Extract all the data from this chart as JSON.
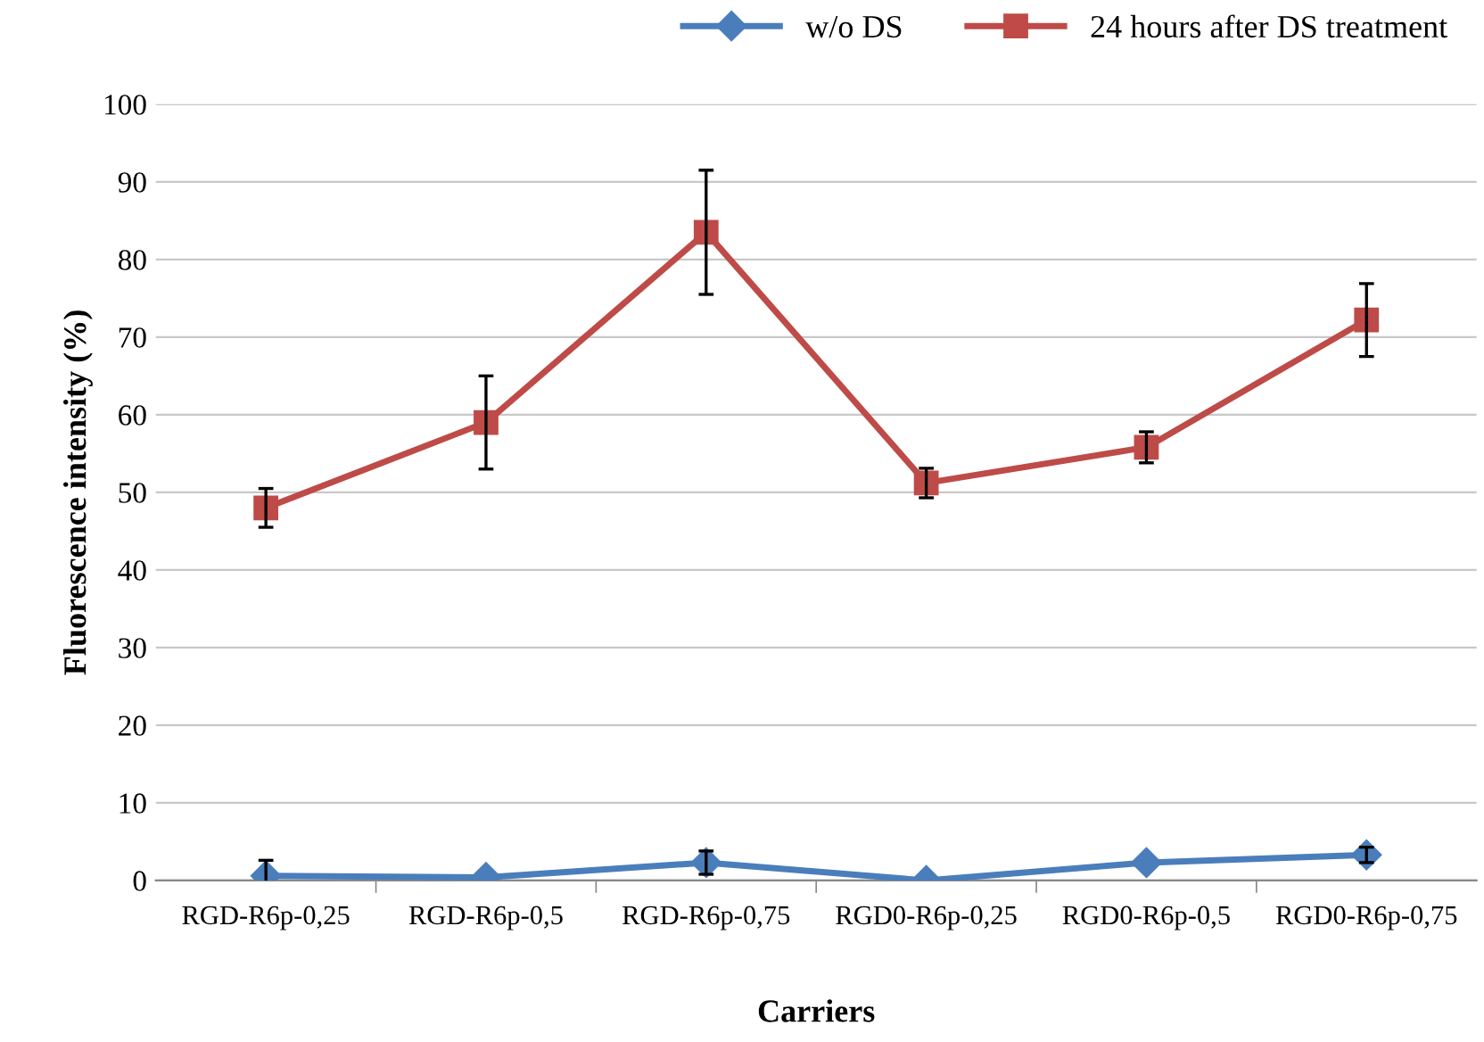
{
  "chart_data": {
    "type": "line",
    "xlabel": "Carriers",
    "ylabel": "Fluorescence intensity (%)",
    "categories": [
      "RGD-R6p-0,25",
      "RGD-R6p-0,5",
      "RGD-R6p-0,75",
      "RGD0-R6p-0,25",
      "RGD0-R6p-0,5",
      "RGD0-R6p-0,75"
    ],
    "series": [
      {
        "name": "w/o DS",
        "color": "#4a7ebb",
        "marker": "diamond",
        "values": [
          0.6,
          0.4,
          2.3,
          0,
          2.3,
          3.3
        ],
        "errors": [
          2,
          null,
          1.5,
          null,
          null,
          1
        ]
      },
      {
        "name": "24 hours after DS treatment",
        "color": "#be4b48",
        "marker": "square",
        "values": [
          48,
          59,
          83.5,
          51.2,
          55.8,
          72.2
        ],
        "errors": [
          2.5,
          6,
          8,
          1.9,
          2,
          4.7
        ]
      }
    ],
    "ylim": [
      0,
      100
    ],
    "yticks": [
      0,
      10,
      20,
      30,
      40,
      50,
      60,
      70,
      80,
      90,
      100
    ],
    "grid": "y",
    "legend": "top right"
  }
}
